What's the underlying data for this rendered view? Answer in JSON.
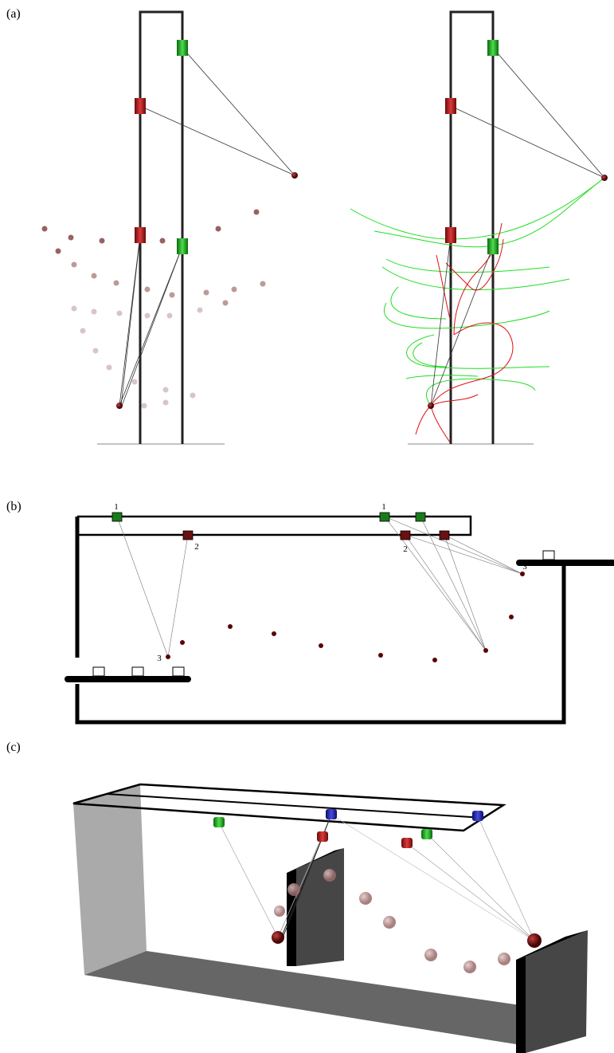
{
  "panels": [
    {
      "label": "(a)"
    },
    {
      "label": "(b)",
      "left_labels": [
        "1",
        "2",
        "3"
      ],
      "right_labels": [
        "1",
        "2",
        "3"
      ]
    },
    {
      "label": "(c)"
    }
  ]
}
